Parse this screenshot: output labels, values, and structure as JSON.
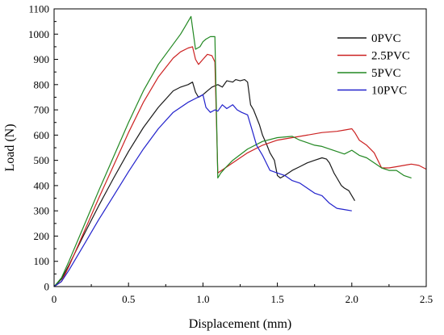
{
  "chart_data": {
    "type": "line",
    "title": "",
    "xlabel": "Displacement (mm)",
    "ylabel": "Load (N)",
    "xlim": [
      0,
      2.5
    ],
    "ylim": [
      0,
      1100
    ],
    "xticks": [
      0,
      0.5,
      1.0,
      1.5,
      2.0,
      2.5
    ],
    "xtick_labels": [
      "0",
      "0.5",
      "1.0",
      "1.5",
      "2.0",
      "2.5"
    ],
    "yticks": [
      0,
      100,
      200,
      300,
      400,
      500,
      600,
      700,
      800,
      900,
      1000,
      1100
    ],
    "ytick_labels": [
      "0",
      "100",
      "200",
      "300",
      "400",
      "500",
      "600",
      "700",
      "800",
      "900",
      "1000",
      "1100"
    ],
    "grid": false,
    "legend_position": "top-right",
    "series": [
      {
        "name": "0PVC",
        "color": "#1a1a1a",
        "x": [
          0,
          0.05,
          0.1,
          0.2,
          0.3,
          0.4,
          0.5,
          0.6,
          0.7,
          0.8,
          0.85,
          0.9,
          0.93,
          0.95,
          0.97,
          1.0,
          1.03,
          1.06,
          1.1,
          1.13,
          1.16,
          1.2,
          1.22,
          1.25,
          1.28,
          1.3,
          1.32,
          1.34,
          1.36,
          1.38,
          1.4,
          1.43,
          1.45,
          1.48,
          1.5,
          1.52,
          1.55,
          1.6,
          1.65,
          1.7,
          1.75,
          1.8,
          1.83,
          1.85,
          1.88,
          1.9,
          1.93,
          1.95,
          1.98,
          2.0,
          2.02
        ],
        "y": [
          0,
          30,
          85,
          205,
          320,
          430,
          535,
          630,
          710,
          775,
          790,
          800,
          810,
          770,
          750,
          760,
          775,
          790,
          800,
          790,
          815,
          810,
          820,
          815,
          820,
          810,
          720,
          700,
          670,
          640,
          600,
          560,
          530,
          500,
          440,
          430,
          440,
          460,
          475,
          490,
          500,
          510,
          505,
          490,
          450,
          430,
          400,
          390,
          380,
          360,
          340
        ]
      },
      {
        "name": "2.5PVC",
        "color": "#cc2222",
        "x": [
          0,
          0.05,
          0.1,
          0.2,
          0.3,
          0.4,
          0.5,
          0.6,
          0.7,
          0.8,
          0.85,
          0.9,
          0.93,
          0.95,
          0.97,
          1.0,
          1.03,
          1.06,
          1.08,
          1.1,
          1.15,
          1.2,
          1.3,
          1.4,
          1.5,
          1.6,
          1.7,
          1.8,
          1.9,
          1.95,
          2.0,
          2.02,
          2.05,
          2.1,
          2.15,
          2.2,
          2.25,
          2.3,
          2.35,
          2.4,
          2.45,
          2.5
        ],
        "y": [
          0,
          20,
          80,
          215,
          350,
          480,
          610,
          730,
          830,
          905,
          930,
          945,
          950,
          900,
          880,
          900,
          920,
          915,
          890,
          450,
          470,
          490,
          530,
          560,
          580,
          590,
          600,
          610,
          615,
          620,
          625,
          610,
          580,
          560,
          530,
          470,
          470,
          475,
          480,
          485,
          480,
          465
        ]
      },
      {
        "name": "5PVC",
        "color": "#228822",
        "x": [
          0,
          0.05,
          0.1,
          0.2,
          0.3,
          0.4,
          0.5,
          0.6,
          0.7,
          0.8,
          0.85,
          0.88,
          0.9,
          0.92,
          0.95,
          0.98,
          1.0,
          1.02,
          1.05,
          1.08,
          1.1,
          1.12,
          1.15,
          1.2,
          1.3,
          1.4,
          1.5,
          1.6,
          1.65,
          1.7,
          1.75,
          1.8,
          1.85,
          1.9,
          1.95,
          2.0,
          2.05,
          2.1,
          2.15,
          2.2,
          2.25,
          2.3,
          2.35,
          2.4
        ],
        "y": [
          0,
          35,
          100,
          240,
          380,
          515,
          650,
          775,
          880,
          960,
          1000,
          1030,
          1050,
          1070,
          940,
          950,
          970,
          980,
          990,
          990,
          430,
          450,
          470,
          500,
          545,
          575,
          590,
          595,
          580,
          570,
          560,
          555,
          545,
          535,
          525,
          540,
          520,
          510,
          490,
          470,
          460,
          460,
          440,
          430
        ]
      },
      {
        "name": "10PVC",
        "color": "#2222cc",
        "x": [
          0,
          0.05,
          0.1,
          0.2,
          0.3,
          0.4,
          0.5,
          0.6,
          0.7,
          0.8,
          0.9,
          0.95,
          1.0,
          1.02,
          1.05,
          1.08,
          1.1,
          1.13,
          1.16,
          1.2,
          1.23,
          1.26,
          1.3,
          1.33,
          1.36,
          1.4,
          1.45,
          1.5,
          1.55,
          1.6,
          1.65,
          1.7,
          1.75,
          1.8,
          1.85,
          1.9,
          1.95,
          2.0
        ],
        "y": [
          0,
          20,
          65,
          165,
          265,
          360,
          455,
          545,
          625,
          690,
          730,
          745,
          760,
          710,
          690,
          700,
          695,
          720,
          705,
          720,
          700,
          690,
          680,
          620,
          560,
          520,
          460,
          450,
          440,
          420,
          410,
          390,
          370,
          360,
          330,
          310,
          305,
          300
        ]
      }
    ]
  }
}
